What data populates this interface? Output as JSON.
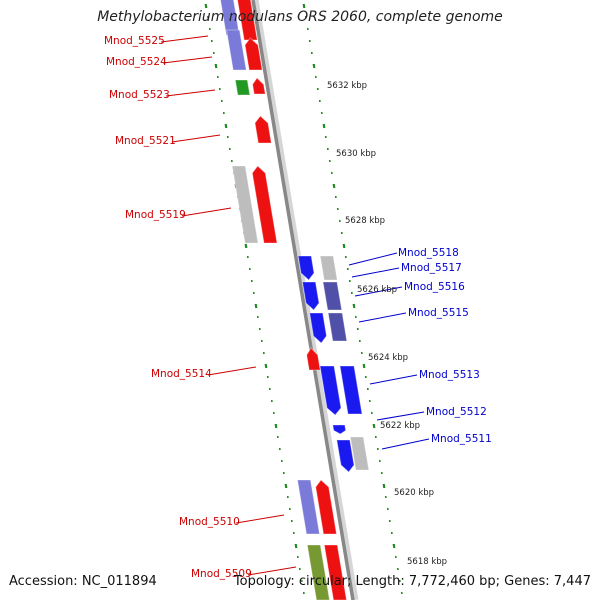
{
  "title": "Methylobacterium nodulans ORS 2060, complete genome",
  "footer": {
    "accession": "Accession: NC_011894",
    "topology": "Topology: circular; Length: 7,772,460 bp; Genes: 7,447"
  },
  "colors": {
    "backbone": "#888888",
    "tick": "#1f8a1f",
    "label_forward": "#cc0000",
    "label_reverse": "#0000cc",
    "gene_red": "#ee1111",
    "gene_blue": "#1a1af0",
    "gene_slate": "#5050a8",
    "gene_lavender": "#7a7ad8",
    "gene_green": "#229922",
    "gene_olive": "#779933",
    "gene_gray": "#bdbdbd",
    "gene_navy": "#101060"
  },
  "scale_labels": [
    "5632 kbp",
    "5630 kbp",
    "5628 kbp",
    "5626 kbp",
    "5624 kbp",
    "5622 kbp",
    "5620 kbp",
    "5618 kbp"
  ],
  "forward_labels": [
    "Mnod_5525",
    "Mnod_5524",
    "Mnod_5523",
    "Mnod_5521",
    "Mnod_5519",
    "Mnod_5514",
    "Mnod_5510",
    "Mnod_5509"
  ],
  "reverse_labels": [
    "Mnod_5518",
    "Mnod_5517",
    "Mnod_5516",
    "Mnod_5515",
    "Mnod_5513",
    "Mnod_5512",
    "Mnod_5511"
  ]
}
